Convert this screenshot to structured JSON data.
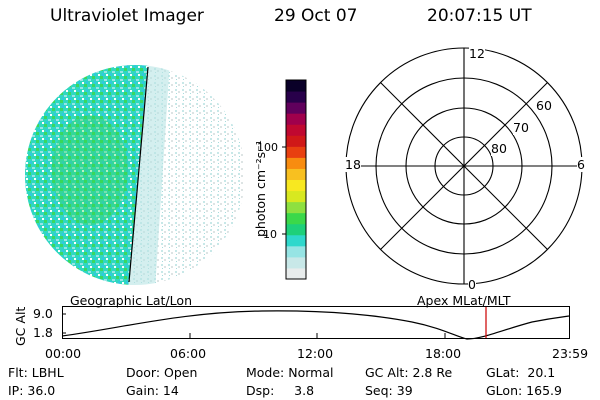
{
  "header": {
    "instrument": "Ultraviolet Imager",
    "date": "29 Oct 07",
    "time": "20:07:15 UT"
  },
  "colorbar": {
    "units_label": "photon cm⁻²s⁻¹",
    "ticks": [
      "100",
      "10"
    ],
    "colors": [
      "#e8ecec",
      "#c8e8e8",
      "#96e4e4",
      "#2fd8cc",
      "#1ed07a",
      "#3bd84a",
      "#8ee040",
      "#d8e820",
      "#f8e820",
      "#f8c020",
      "#f88c10",
      "#e84010",
      "#d01818",
      "#c00830",
      "#a0004c",
      "#60005c",
      "#28004a",
      "#0a0028"
    ]
  },
  "polar_plot": {
    "mlt_labels": {
      "top": "12",
      "left": "18",
      "right": "6",
      "bottom": "0"
    },
    "lat_labels": [
      "60",
      "70",
      "80"
    ]
  },
  "timeline": {
    "y_axis_label": "GC Alt",
    "y_ticks": [
      "9.0",
      "1.8"
    ],
    "left_caption": "Geographic Lat/Lon",
    "right_caption": "Apex MLat/MLT",
    "x_ticks": [
      "00:00",
      "06:00",
      "12:00",
      "18:00",
      "23:59"
    ],
    "marker_color": "#d01010"
  },
  "status": {
    "row1": [
      {
        "key": "flt",
        "text": "Flt: LBHL"
      },
      {
        "key": "door",
        "text": "Door: Open"
      },
      {
        "key": "mode",
        "text": "Mode: Normal"
      },
      {
        "key": "gcalt",
        "text": "GC Alt: 2.8 Re"
      },
      {
        "key": "glat",
        "text": "GLat:  20.1"
      }
    ],
    "row2": [
      {
        "key": "ip",
        "text": "IP: 36.0"
      },
      {
        "key": "gain",
        "text": "Gain: 14"
      },
      {
        "key": "dsp",
        "text": "Dsp:     3.8"
      },
      {
        "key": "seq",
        "text": "Seq: 39"
      },
      {
        "key": "glon",
        "text": "GLon: 165.9"
      }
    ]
  }
}
